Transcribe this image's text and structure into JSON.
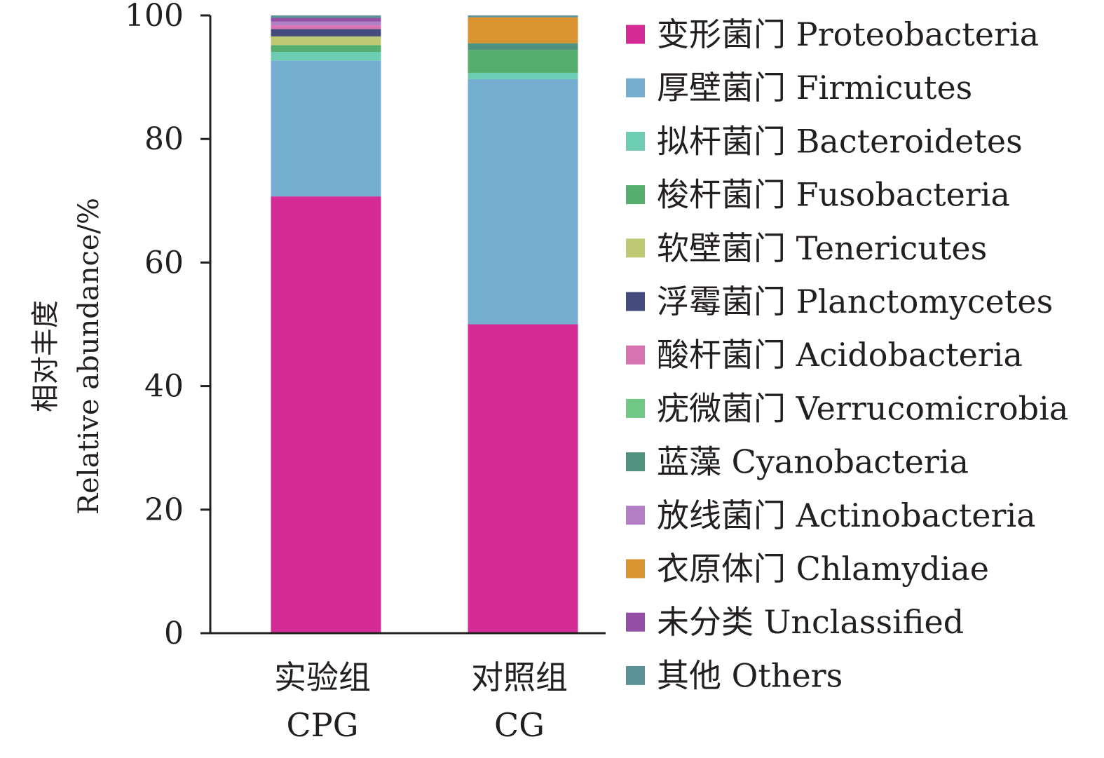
{
  "chart_data": {
    "type": "bar",
    "stacked": true,
    "title": "",
    "ylabel_cn": "相对丰度",
    "ylabel_en": "Relative abundance/%",
    "ylim": [
      0,
      100
    ],
    "yticks": [
      0,
      20,
      40,
      60,
      80,
      100
    ],
    "grid": false,
    "legend_position": "right",
    "categories": [
      {
        "cn": "实验组",
        "en": "CPG"
      },
      {
        "cn": "对照组",
        "en": "CG"
      }
    ],
    "series": [
      {
        "name": "变形菌门 Proteobacteria",
        "color": "#d42b96",
        "values": [
          70.7,
          50.0
        ]
      },
      {
        "name": "厚壁菌门 Firmicutes",
        "color": "#76aed1",
        "values": [
          22.0,
          39.7
        ]
      },
      {
        "name": "拟杆菌门 Bacteroidetes",
        "color": "#6ccdb3",
        "values": [
          1.4,
          1.0
        ]
      },
      {
        "name": "梭杆菌门 Fusobacteria",
        "color": "#55ae6d",
        "values": [
          1.1,
          3.7
        ]
      },
      {
        "name": "软壁菌门 Tenericutes",
        "color": "#bec972",
        "values": [
          1.4,
          0.0
        ]
      },
      {
        "name": "浮霉菌门 Planctomycetes",
        "color": "#444b7d",
        "values": [
          1.2,
          0.0
        ]
      },
      {
        "name": "酸杆菌门 Acidobacteria",
        "color": "#d873b2",
        "values": [
          0.6,
          0.0
        ]
      },
      {
        "name": "疣微菌门 Verrucomicrobia",
        "color": "#70c886",
        "values": [
          0.0,
          0.0
        ]
      },
      {
        "name": "蓝藻 Cyanobacteria",
        "color": "#4f937f",
        "values": [
          0.0,
          1.1
        ]
      },
      {
        "name": "放线菌门 Actinobacteria",
        "color": "#b27ec6",
        "values": [
          0.6,
          0.0
        ]
      },
      {
        "name": "衣原体门 Chlamydiae",
        "color": "#d99431",
        "values": [
          0.0,
          4.2
        ]
      },
      {
        "name": "未分类 Unclassified",
        "color": "#954ea5",
        "values": [
          0.6,
          0.0
        ]
      },
      {
        "name": "其他 Others",
        "color": "#5a9199",
        "values": [
          0.4,
          0.3
        ]
      }
    ]
  }
}
